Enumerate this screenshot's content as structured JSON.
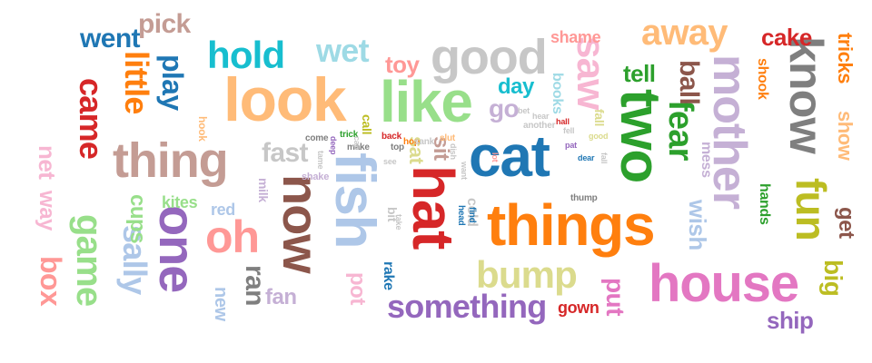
{
  "words": [
    {
      "text": "cat",
      "color": "#1f77b4"
    },
    {
      "text": "things",
      "color": "#ff7f0e"
    },
    {
      "text": "two",
      "color": "#2ca02c"
    },
    {
      "text": "look",
      "color": "#ffbb78"
    },
    {
      "text": "like",
      "color": "#98df8a"
    },
    {
      "text": "hat",
      "color": "#d62728"
    },
    {
      "text": "fish",
      "color": "#aec7e8"
    },
    {
      "text": "house",
      "color": "#e377c2"
    },
    {
      "text": "thing",
      "color": "#c49c94"
    },
    {
      "text": "one",
      "color": "#9467bd"
    },
    {
      "text": "mother",
      "color": "#c5b0d5"
    },
    {
      "text": "now",
      "color": "#8c564b"
    },
    {
      "text": "good",
      "color": "#c7c7c7"
    },
    {
      "text": "know",
      "color": "#7f7f7f"
    },
    {
      "text": "oh",
      "color": "#ff9896"
    },
    {
      "text": "saw",
      "color": "#f7b6d2"
    },
    {
      "text": "fun",
      "color": "#bcbd22"
    },
    {
      "text": "hold",
      "color": "#17becf"
    },
    {
      "text": "bump",
      "color": "#dbdb8d"
    },
    {
      "text": "something",
      "color": "#9467bd"
    },
    {
      "text": "away",
      "color": "#ffbb78"
    },
    {
      "text": "fear",
      "color": "#2ca02c"
    },
    {
      "text": "game",
      "color": "#98df8a"
    },
    {
      "text": "sally",
      "color": "#aec7e8"
    },
    {
      "text": "came",
      "color": "#d62728"
    },
    {
      "text": "little",
      "color": "#ff7f0e"
    },
    {
      "text": "play",
      "color": "#1f77b4"
    },
    {
      "text": "ball",
      "color": "#8c564b"
    },
    {
      "text": "ran",
      "color": "#7f7f7f"
    },
    {
      "text": "wet",
      "color": "#9edae5"
    },
    {
      "text": "box",
      "color": "#ff9896"
    },
    {
      "text": "fast",
      "color": "#c7c7c7"
    },
    {
      "text": "went",
      "color": "#1f77b4"
    },
    {
      "text": "pick",
      "color": "#c49c94"
    },
    {
      "text": "net",
      "color": "#f7b6d2"
    },
    {
      "text": "way",
      "color": "#f7b6d2"
    },
    {
      "text": "cups",
      "color": "#98df8a"
    },
    {
      "text": "big",
      "color": "#bcbd22"
    },
    {
      "text": "ship",
      "color": "#9467bd"
    },
    {
      "text": "cake",
      "color": "#d62728"
    },
    {
      "text": "tricks",
      "color": "#ff7f0e"
    },
    {
      "text": "show",
      "color": "#ffbb78"
    },
    {
      "text": "get",
      "color": "#8c564b"
    },
    {
      "text": "put",
      "color": "#e377c2"
    },
    {
      "text": "toy",
      "color": "#ff9896"
    },
    {
      "text": "go",
      "color": "#c5b0d5"
    },
    {
      "text": "day",
      "color": "#17becf"
    },
    {
      "text": "tell",
      "color": "#2ca02c"
    },
    {
      "text": "sit",
      "color": "#c49c94"
    },
    {
      "text": "sat",
      "color": "#dbdb8d"
    },
    {
      "text": "wish",
      "color": "#aec7e8"
    },
    {
      "text": "pot",
      "color": "#f7b6d2"
    },
    {
      "text": "fan",
      "color": "#c5b0d5"
    },
    {
      "text": "new",
      "color": "#aec7e8"
    },
    {
      "text": "gown",
      "color": "#d62728"
    },
    {
      "text": "shame",
      "color": "#ff9896"
    },
    {
      "text": "kites",
      "color": "#98df8a"
    },
    {
      "text": "red",
      "color": "#aec7e8"
    },
    {
      "text": "mess",
      "color": "#c5b0d5"
    },
    {
      "text": "hands",
      "color": "#2ca02c"
    },
    {
      "text": "shook",
      "color": "#ff7f0e"
    },
    {
      "text": "rake",
      "color": "#1f77b4"
    },
    {
      "text": "cold",
      "color": "#c7c7c7"
    },
    {
      "text": "books",
      "color": "#9edae5"
    },
    {
      "text": "milk",
      "color": "#c5b0d5"
    },
    {
      "text": "bit",
      "color": "#c7c7c7"
    },
    {
      "text": "call",
      "color": "#bcbd22"
    },
    {
      "text": "fall",
      "color": "#dbdb8d"
    },
    {
      "text": "hook",
      "color": "#ffbb78"
    },
    {
      "text": "shake",
      "color": "#c5b0d5"
    },
    {
      "text": "thump",
      "color": "#7f7f7f"
    },
    {
      "text": "head",
      "color": "#1f77b4"
    },
    {
      "text": "find",
      "color": "#1f77b4"
    },
    {
      "text": "trick",
      "color": "#2ca02c"
    },
    {
      "text": "back",
      "color": "#d62728"
    },
    {
      "text": "hop",
      "color": "#ff7f0e"
    },
    {
      "text": "sank",
      "color": "#c7c7c7"
    },
    {
      "text": "slut",
      "color": "#ffbb78"
    },
    {
      "text": "come",
      "color": "#7f7f7f"
    },
    {
      "text": "make",
      "color": "#7f7f7f"
    },
    {
      "text": "top",
      "color": "#7f7f7f"
    },
    {
      "text": "another",
      "color": "#c7c7c7"
    },
    {
      "text": "bet",
      "color": "#c7c7c7"
    },
    {
      "text": "hear",
      "color": "#c7c7c7"
    },
    {
      "text": "hall",
      "color": "#d62728"
    },
    {
      "text": "fell",
      "color": "#c7c7c7"
    },
    {
      "text": "good",
      "color": "#dbdb8d"
    },
    {
      "text": "pat",
      "color": "#9467bd"
    },
    {
      "text": "dear",
      "color": "#1f77b4"
    },
    {
      "text": "lot",
      "color": "#ff9896"
    },
    {
      "text": "see",
      "color": "#c7c7c7"
    },
    {
      "text": "dish",
      "color": "#c7c7c7"
    },
    {
      "text": "want",
      "color": "#c7c7c7"
    },
    {
      "text": "take",
      "color": "#c7c7c7"
    },
    {
      "text": "deep",
      "color": "#9467bd"
    },
    {
      "text": "tame",
      "color": "#c7c7c7"
    },
    {
      "text": "fall",
      "color": "#c7c7c7"
    },
    {
      "text": "cap",
      "color": "#c7c7c7"
    }
  ]
}
